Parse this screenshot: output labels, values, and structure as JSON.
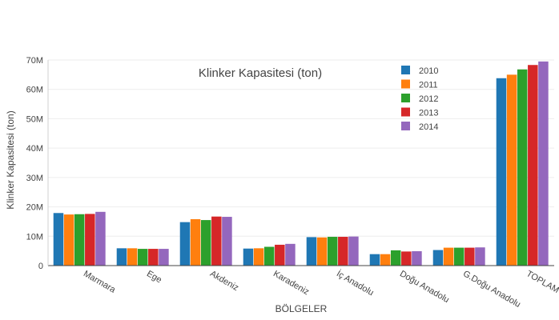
{
  "chart_data": {
    "type": "bar",
    "title": "Klinker Kapasitesi  (ton)",
    "xlabel": "BÖLGELER",
    "ylabel": "Klinker Kapasitesi (ton)",
    "ylim": [
      0,
      70000000
    ],
    "y_ticks": [
      0,
      10000000,
      20000000,
      30000000,
      40000000,
      50000000,
      60000000,
      70000000
    ],
    "y_tick_labels": [
      "0",
      "10M",
      "20M",
      "30M",
      "40M",
      "50M",
      "60M",
      "70M"
    ],
    "grid": true,
    "legend_position": "top-right",
    "categories": [
      "Marmara",
      "Ege",
      "Akdeniz",
      "Karadeniz",
      "İç Anadolu",
      "Doğu Anadolu",
      "G.Doğu Anadolu",
      "TOPLAM"
    ],
    "series": [
      {
        "name": "2010",
        "color": "#1f77b4",
        "values": [
          17900000,
          5900000,
          14800000,
          5800000,
          9700000,
          3900000,
          5300000,
          63800000
        ]
      },
      {
        "name": "2011",
        "color": "#ff7f0e",
        "values": [
          17400000,
          5900000,
          15800000,
          5900000,
          9600000,
          3900000,
          6100000,
          65000000
        ]
      },
      {
        "name": "2012",
        "color": "#2ca02c",
        "values": [
          17500000,
          5700000,
          15500000,
          6400000,
          9800000,
          5200000,
          6100000,
          66800000
        ]
      },
      {
        "name": "2013",
        "color": "#d62728",
        "values": [
          17600000,
          5700000,
          16700000,
          7100000,
          9800000,
          4800000,
          6100000,
          68300000
        ]
      },
      {
        "name": "2014",
        "color": "#9467bd",
        "values": [
          18300000,
          5700000,
          16600000,
          7400000,
          9900000,
          4900000,
          6200000,
          69500000
        ]
      }
    ]
  }
}
